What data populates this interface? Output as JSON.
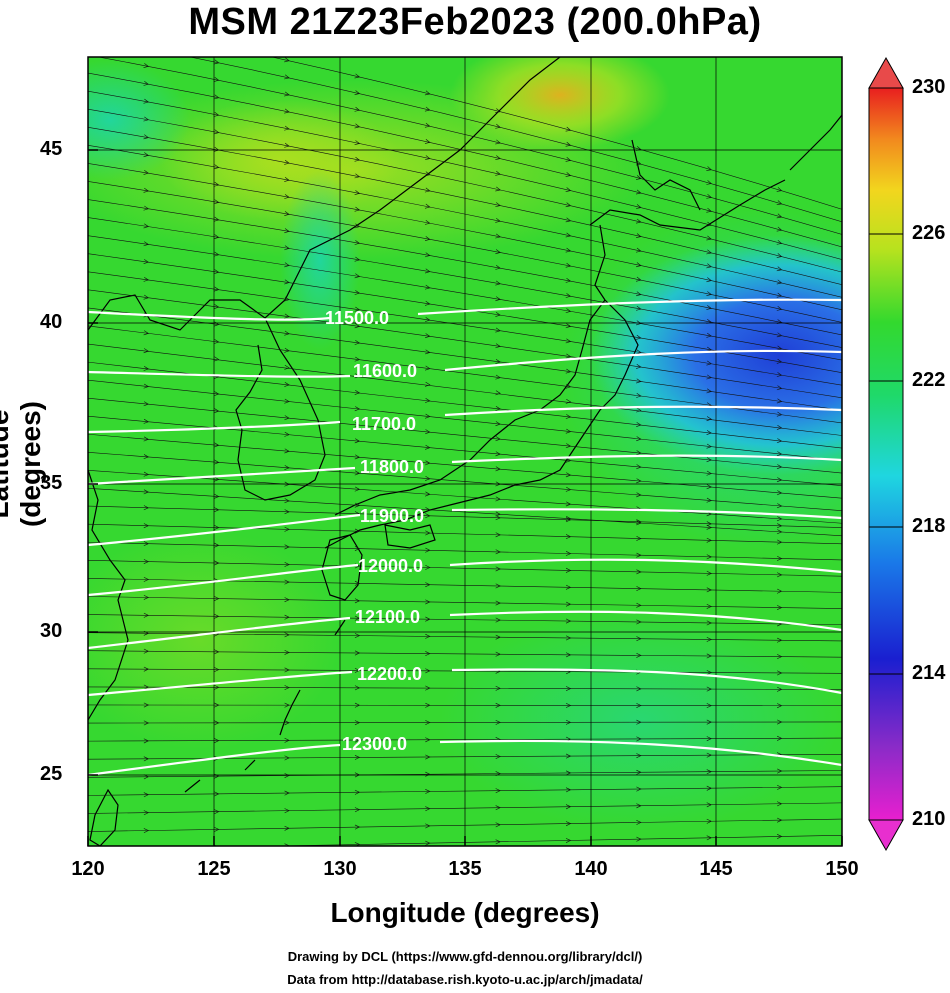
{
  "title": "MSM 21Z23Feb2023 (200.0hPa)",
  "xlabel": "Longitude (degrees)",
  "ylabel": "Latitude  (degrees)",
  "x_ticks": [
    "120",
    "125",
    "130",
    "135",
    "140",
    "145",
    "150"
  ],
  "y_ticks": [
    "25",
    "30",
    "35",
    "40",
    "45"
  ],
  "colorbar_ticks": [
    "230",
    "226",
    "222",
    "218",
    "214",
    "210"
  ],
  "credit_line1": "Drawing by DCL (https://www.gfd-dennou.org/library/dcl/)",
  "credit_line2": "Data from http://database.rish.kyoto-u.ac.jp/arch/jmadata/",
  "contour_labels": [
    "11500.0",
    "11600.0",
    "11700.0",
    "11800.0",
    "11900.0",
    "12000.0",
    "12100.0",
    "12200.0",
    "12300.0"
  ],
  "map": {
    "lon_range": [
      120,
      150
    ],
    "lat_range": [
      22.5,
      47.6
    ],
    "color_scale_range": [
      210,
      230
    ],
    "colors": {
      "field_base": "#33d92e",
      "cold_core": "#1f3fd6",
      "cyan_zone": "#22d6c8",
      "warm_yellow": "#c8e21e",
      "contour": "#ffffff",
      "vectors": "#1a1a1a",
      "coastline": "#000000"
    }
  }
}
